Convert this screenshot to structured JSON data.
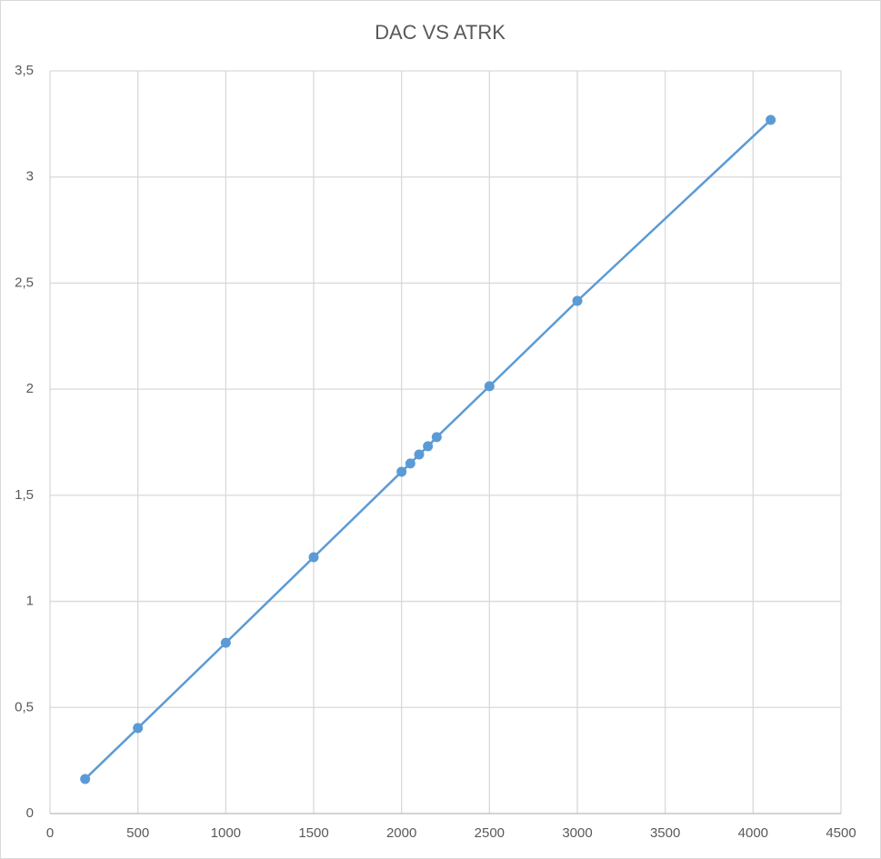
{
  "chart_data": {
    "type": "line",
    "title": "DAC VS ATRK",
    "x": [
      200,
      500,
      1000,
      1500,
      2000,
      2050,
      2100,
      2150,
      2200,
      2500,
      3000,
      4100
    ],
    "values": [
      0.163,
      0.403,
      0.805,
      1.208,
      1.611,
      1.65,
      1.692,
      1.731,
      1.774,
      2.014,
      2.416,
      3.269
    ],
    "color": "#5b9bd5",
    "xlim": [
      0,
      4500
    ],
    "xticks": [
      0,
      500,
      1000,
      1500,
      2000,
      2500,
      3000,
      3500,
      4000,
      4500
    ],
    "ylim": [
      0,
      3.5
    ],
    "yticks": [
      0,
      {
        "value": 0.5,
        "label": "0,5"
      },
      1,
      {
        "value": 1.5,
        "label": "1,5"
      },
      2,
      {
        "value": 2.5,
        "label": "2,5"
      },
      3,
      {
        "value": 3.5,
        "label": "3,5"
      }
    ],
    "grid": true,
    "markers": true
  }
}
